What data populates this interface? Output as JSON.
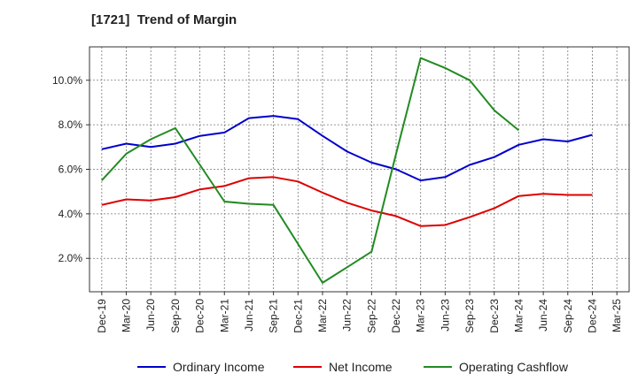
{
  "chart_data": {
    "type": "line",
    "title": "[1721]  Trend of Margin",
    "xlabel": "",
    "ylabel": "",
    "x": [
      "Dec-19",
      "Mar-20",
      "Jun-20",
      "Sep-20",
      "Dec-20",
      "Mar-21",
      "Jun-21",
      "Sep-21",
      "Dec-21",
      "Mar-22",
      "Jun-22",
      "Sep-22",
      "Dec-22",
      "Mar-23",
      "Jun-23",
      "Sep-23",
      "Dec-23",
      "Mar-24",
      "Jun-24",
      "Sep-24",
      "Dec-24",
      "Mar-25"
    ],
    "ylim": [
      0.5,
      11.5
    ],
    "yticks": [
      2.0,
      4.0,
      6.0,
      8.0,
      10.0
    ],
    "ytick_labels": [
      "2.0%",
      "4.0%",
      "6.0%",
      "8.0%",
      "10.0%"
    ],
    "grid": true,
    "legend_position": "bottom",
    "series": [
      {
        "name": "Ordinary Income",
        "color": "#0000cc",
        "values": [
          6.9,
          7.15,
          7.0,
          7.15,
          7.5,
          7.65,
          8.3,
          8.4,
          8.25,
          7.5,
          6.8,
          6.3,
          6.0,
          5.5,
          5.65,
          6.2,
          6.55,
          7.1,
          7.35,
          7.25,
          7.55,
          null
        ]
      },
      {
        "name": "Net Income",
        "color": "#dd0000",
        "values": [
          4.4,
          4.65,
          4.6,
          4.75,
          5.1,
          5.25,
          5.6,
          5.65,
          5.45,
          4.95,
          4.5,
          4.15,
          3.9,
          3.45,
          3.5,
          3.85,
          4.25,
          4.8,
          4.9,
          4.85,
          4.85,
          null
        ]
      },
      {
        "name": "Operating Cashflow",
        "color": "#228b22",
        "values": [
          5.5,
          6.7,
          7.35,
          7.85,
          6.2,
          4.55,
          4.45,
          4.4,
          2.65,
          0.9,
          1.6,
          2.3,
          6.7,
          11.0,
          10.55,
          10.0,
          8.65,
          7.75,
          null,
          null,
          null,
          null
        ]
      }
    ]
  }
}
